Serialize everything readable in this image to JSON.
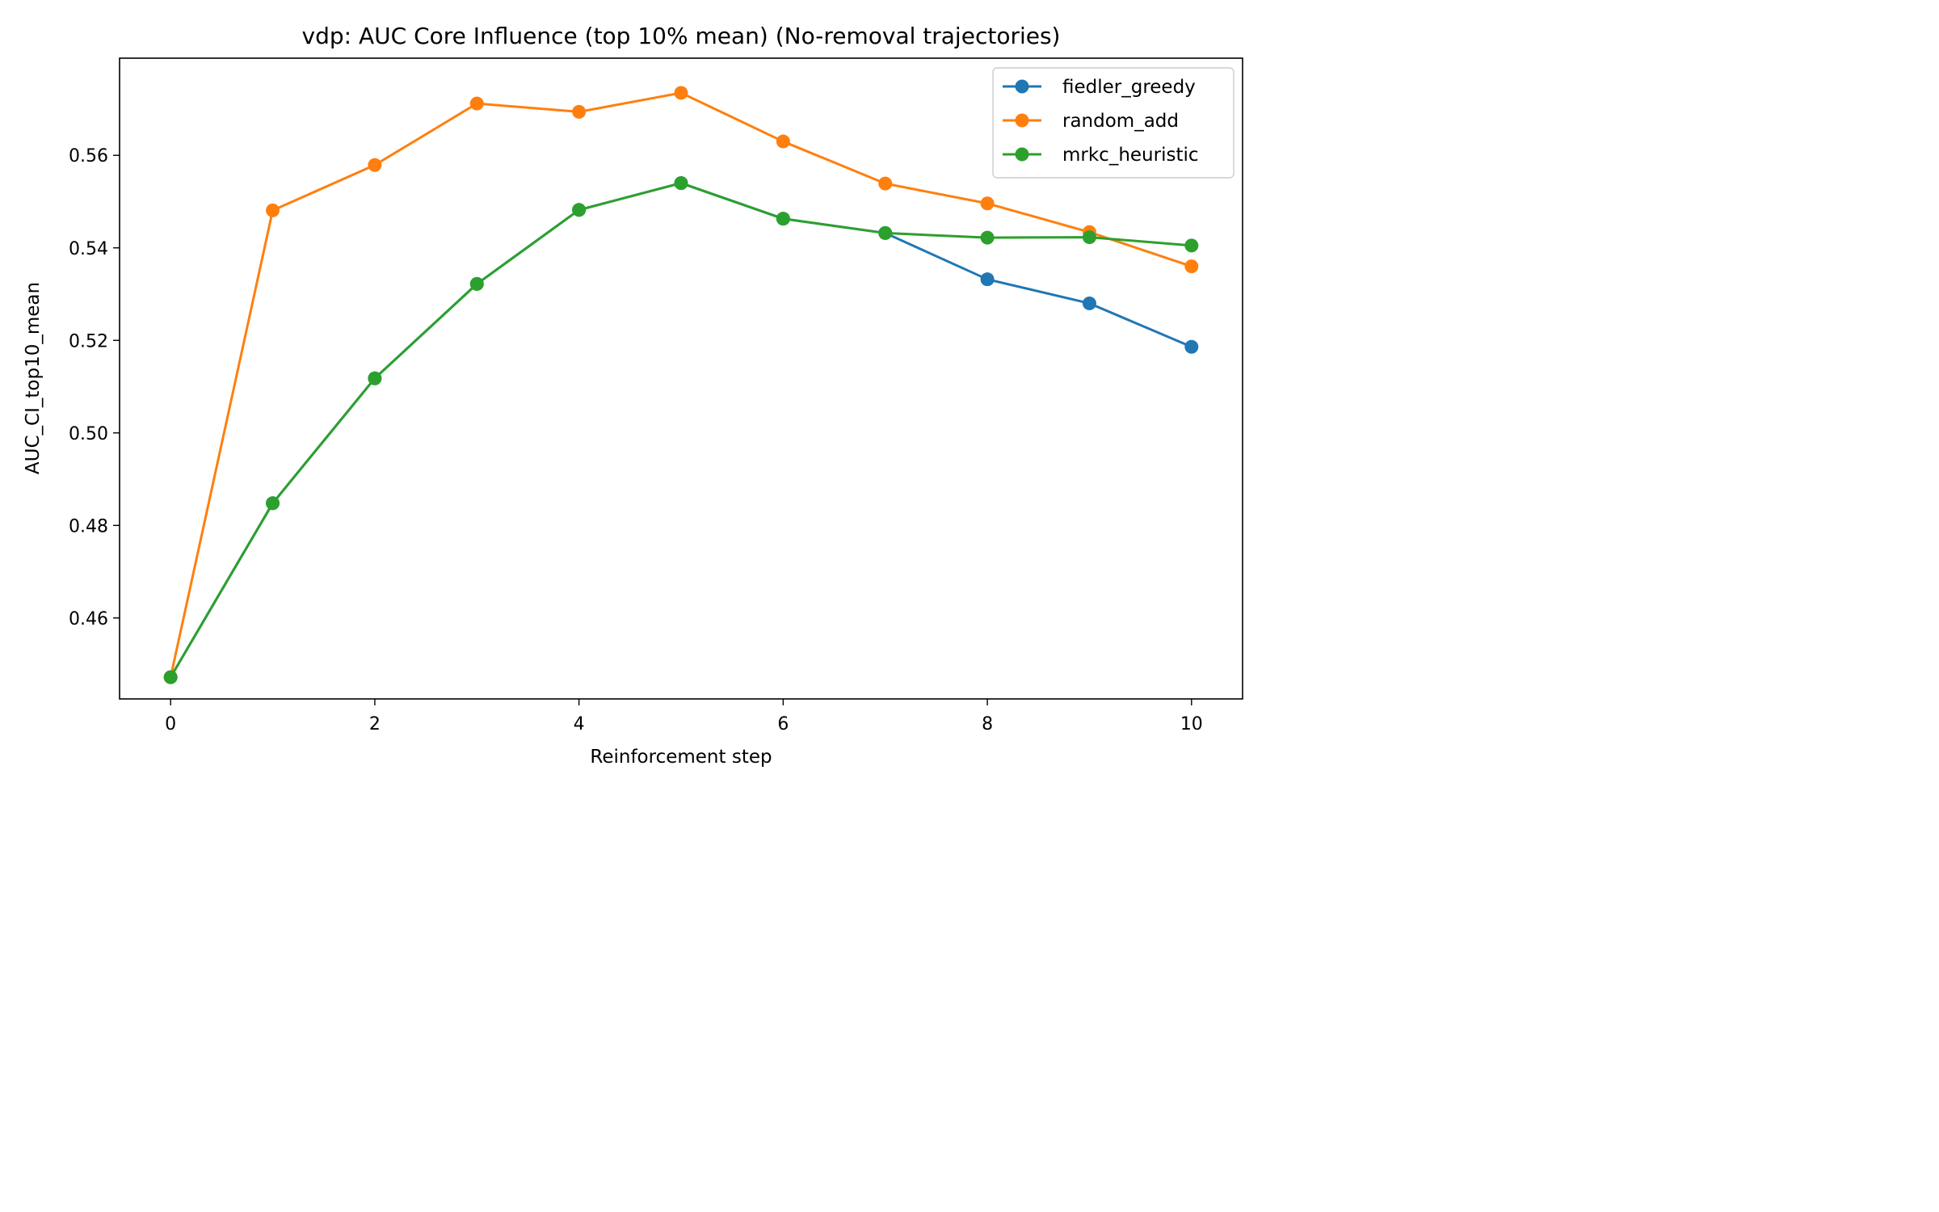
{
  "chart_data": {
    "type": "line",
    "title": "vdp: AUC Core Influence (top 10% mean) (No-removal trajectories)",
    "xlabel": "Reinforcement step",
    "ylabel": "AUC_CI_top10_mean",
    "x": [
      0,
      1,
      2,
      3,
      4,
      5,
      6,
      7,
      8,
      9,
      10
    ],
    "xlim": [
      -0.5,
      10.5
    ],
    "ylim": [
      0.4425,
      0.581
    ],
    "xticks": [
      0,
      2,
      4,
      6,
      8,
      10
    ],
    "yticks": [
      0.46,
      0.48,
      0.5,
      0.52,
      0.54,
      0.56
    ],
    "xtick_labels": [
      "0",
      "2",
      "4",
      "6",
      "8",
      "10"
    ],
    "ytick_labels": [
      "0.46",
      "0.48",
      "0.50",
      "0.52",
      "0.54",
      "0.56"
    ],
    "grid": false,
    "legend_position": "top-right",
    "series": [
      {
        "name": "fiedler_greedy",
        "color": "#1f77b4",
        "values": [
          0.4472,
          0.4848,
          0.5118,
          0.5322,
          0.5482,
          0.554,
          0.5463,
          0.5432,
          0.5332,
          0.528,
          0.5186
        ]
      },
      {
        "name": "random_add",
        "color": "#ff7f0e",
        "values": [
          0.4472,
          0.5481,
          0.5579,
          0.5712,
          0.5694,
          0.5735,
          0.563,
          0.5539,
          0.5496,
          0.5434,
          0.536
        ]
      },
      {
        "name": "mrkc_heuristic",
        "color": "#2ca02c",
        "values": [
          0.4472,
          0.4848,
          0.5118,
          0.5322,
          0.5482,
          0.554,
          0.5463,
          0.5432,
          0.5422,
          0.5423,
          0.5405
        ]
      }
    ]
  }
}
